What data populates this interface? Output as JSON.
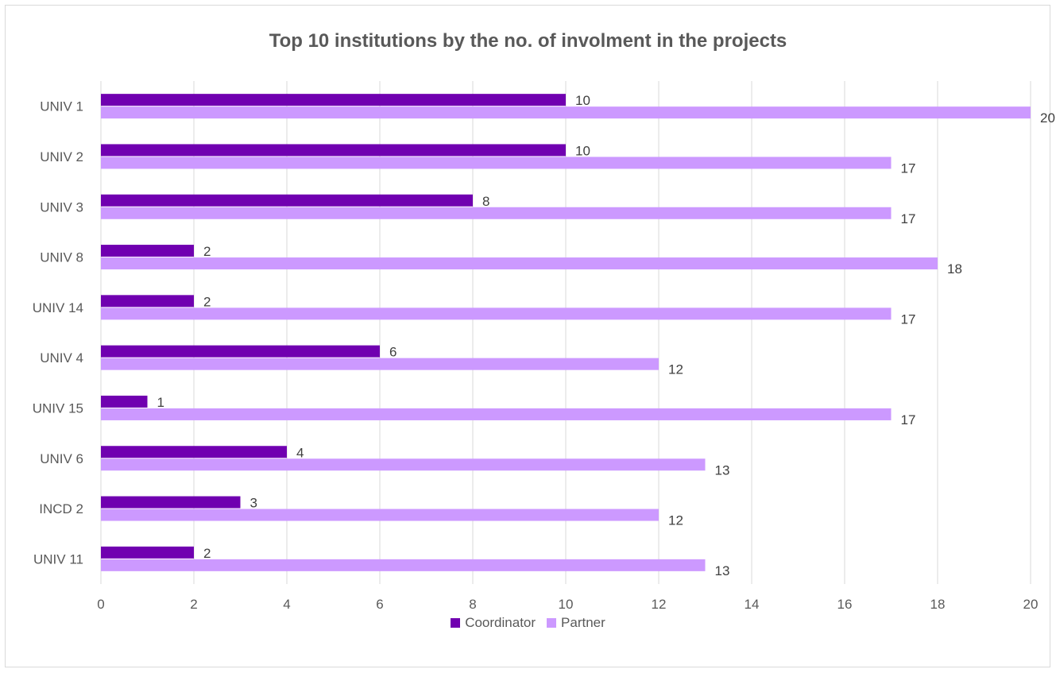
{
  "chart_data": {
    "type": "bar",
    "orientation": "horizontal",
    "title": "Top 10 institutions by the no. of involment in the projects",
    "categories": [
      "UNIV 1",
      "UNIV 2",
      "UNIV 3",
      "UNIV 8",
      "UNIV 14",
      "UNIV 4",
      "UNIV 15",
      "UNIV 6",
      "INCD 2",
      "UNIV 11"
    ],
    "series": [
      {
        "name": "Coordinator",
        "color": "#7000b0",
        "values": [
          10,
          10,
          8,
          2,
          2,
          6,
          1,
          4,
          3,
          2
        ]
      },
      {
        "name": "Partner",
        "color": "#cc99ff",
        "values": [
          20,
          17,
          17,
          18,
          17,
          12,
          17,
          13,
          12,
          13
        ]
      }
    ],
    "xlim": [
      0,
      20
    ],
    "xticks": [
      "0",
      "2",
      "4",
      "6",
      "8",
      "10",
      "12",
      "14",
      "16",
      "18",
      "20"
    ],
    "grid": true,
    "legend_position": "bottom"
  }
}
